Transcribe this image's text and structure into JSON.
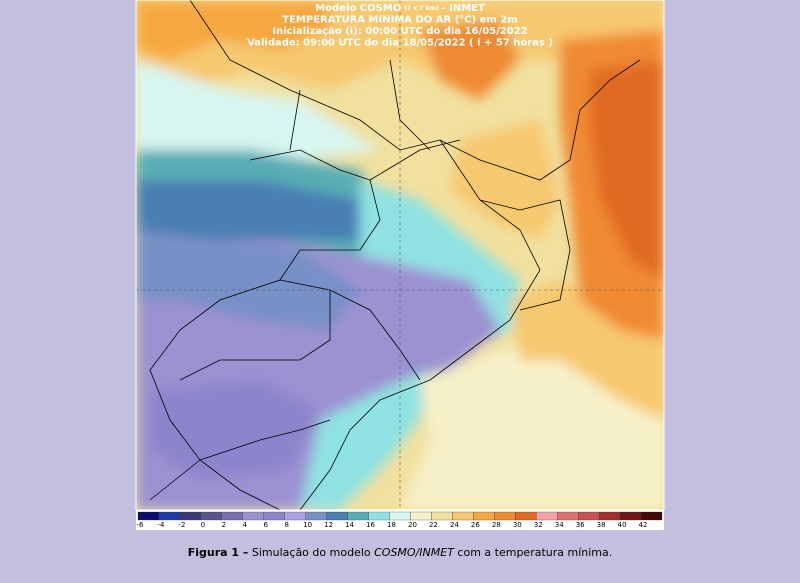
{
  "map": {
    "title_lines": [
      {
        "main": "Modelo COSMO",
        "small": "(7 x 7 km)",
        "rest": "- INMET"
      },
      "TEMPERATURA MINIMA DO AR (°C) em 2m",
      "Inicialização (i): 00:00 UTC do dia 16/05/2022",
      "Validade: 09:00 UTC do dia 18/05/2022 ( i + 57 horas )"
    ],
    "colorbar": {
      "labels": [
        -6,
        -4,
        -2,
        0,
        2,
        4,
        6,
        8,
        10,
        12,
        14,
        16,
        18,
        20,
        22,
        24,
        26,
        28,
        30,
        32,
        34,
        36,
        38,
        40,
        42
      ],
      "colors": [
        "#0b0b6e",
        "#1f3aa8",
        "#3a3a78",
        "#56568a",
        "#7a70b0",
        "#9b92d2",
        "#8d85cc",
        "#aaa2e2",
        "#7890c8",
        "#4a7fb3",
        "#58aeb4",
        "#90e2e2",
        "#d8f6f0",
        "#f6f0c8",
        "#f1e09e",
        "#f6c870",
        "#f6a840",
        "#f08a30",
        "#e06a20",
        "#f2a4a4",
        "#e07272",
        "#c85050",
        "#a03030",
        "#701818",
        "#400808"
      ]
    }
  },
  "caption": {
    "label": "Figura 1 –",
    "text1": "Simulação do modelo",
    "italic": "COSMO/INMET",
    "text2": "com a temperatura mínima."
  }
}
